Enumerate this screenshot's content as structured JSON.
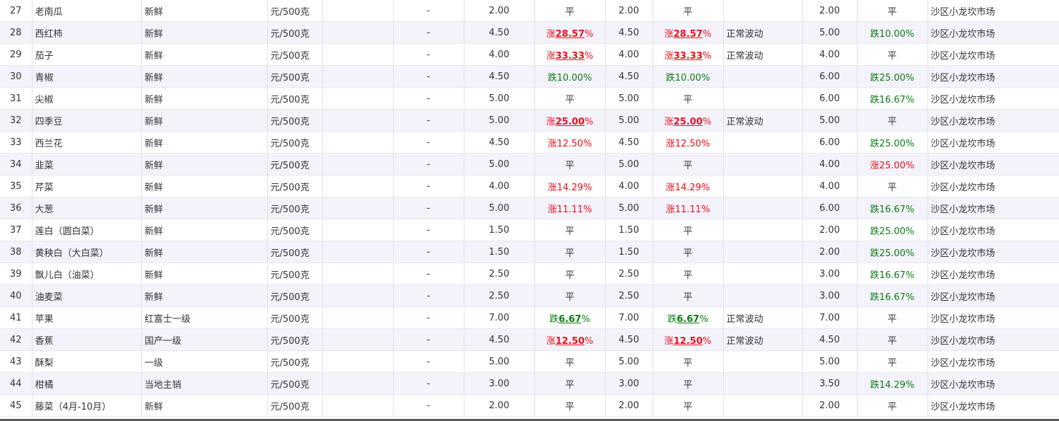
{
  "table": {
    "rows": [
      {
        "no": "27",
        "name": "老南瓜",
        "grade": "新鲜",
        "unit": "元/500克",
        "extra": "",
        "dash": "-",
        "price1": "2.00",
        "chg1": {
          "prefix": "平",
          "pct": "",
          "dir": "flat",
          "bold": false
        },
        "price2": "2.00",
        "chg2": {
          "prefix": "平",
          "pct": "",
          "dir": "flat",
          "bold": false
        },
        "note": "",
        "price3": "2.00",
        "chg3": {
          "prefix": "平",
          "pct": "",
          "dir": "flat",
          "bold": false
        },
        "market": "沙区小龙坎市场"
      },
      {
        "no": "28",
        "name": "西红柿",
        "grade": "新鲜",
        "unit": "元/500克",
        "extra": "",
        "dash": "-",
        "price1": "4.50",
        "chg1": {
          "prefix": "涨",
          "pct": "28.57",
          "dir": "up",
          "bold": true
        },
        "price2": "4.50",
        "chg2": {
          "prefix": "涨",
          "pct": "28.57",
          "dir": "up",
          "bold": true
        },
        "note": "正常波动",
        "price3": "5.00",
        "chg3": {
          "prefix": "跌",
          "pct": "10.00",
          "dir": "down",
          "bold": false
        },
        "market": "沙区小龙坎市场"
      },
      {
        "no": "29",
        "name": "茄子",
        "grade": "新鲜",
        "unit": "元/500克",
        "extra": "",
        "dash": "-",
        "price1": "4.00",
        "chg1": {
          "prefix": "涨",
          "pct": "33.33",
          "dir": "up",
          "bold": true
        },
        "price2": "4.00",
        "chg2": {
          "prefix": "涨",
          "pct": "33.33",
          "dir": "up",
          "bold": true
        },
        "note": "正常波动",
        "price3": "4.00",
        "chg3": {
          "prefix": "平",
          "pct": "",
          "dir": "flat",
          "bold": false
        },
        "market": "沙区小龙坎市场"
      },
      {
        "no": "30",
        "name": "青椒",
        "grade": "新鲜",
        "unit": "元/500克",
        "extra": "",
        "dash": "-",
        "price1": "4.50",
        "chg1": {
          "prefix": "跌",
          "pct": "10.00",
          "dir": "down",
          "bold": false
        },
        "price2": "4.50",
        "chg2": {
          "prefix": "跌",
          "pct": "10.00",
          "dir": "down",
          "bold": false
        },
        "note": "",
        "price3": "6.00",
        "chg3": {
          "prefix": "跌",
          "pct": "25.00",
          "dir": "down",
          "bold": false
        },
        "market": "沙区小龙坎市场"
      },
      {
        "no": "31",
        "name": "尖椒",
        "grade": "新鲜",
        "unit": "元/500克",
        "extra": "",
        "dash": "-",
        "price1": "5.00",
        "chg1": {
          "prefix": "平",
          "pct": "",
          "dir": "flat",
          "bold": false
        },
        "price2": "5.00",
        "chg2": {
          "prefix": "平",
          "pct": "",
          "dir": "flat",
          "bold": false
        },
        "note": "",
        "price3": "6.00",
        "chg3": {
          "prefix": "跌",
          "pct": "16.67",
          "dir": "down",
          "bold": false
        },
        "market": "沙区小龙坎市场"
      },
      {
        "no": "32",
        "name": "四季豆",
        "grade": "新鲜",
        "unit": "元/500克",
        "extra": "",
        "dash": "-",
        "price1": "5.00",
        "chg1": {
          "prefix": "涨",
          "pct": "25.00",
          "dir": "up",
          "bold": true
        },
        "price2": "5.00",
        "chg2": {
          "prefix": "涨",
          "pct": "25.00",
          "dir": "up",
          "bold": true
        },
        "note": "正常波动",
        "price3": "5.00",
        "chg3": {
          "prefix": "平",
          "pct": "",
          "dir": "flat",
          "bold": false
        },
        "market": "沙区小龙坎市场"
      },
      {
        "no": "33",
        "name": "西兰花",
        "grade": "新鲜",
        "unit": "元/500克",
        "extra": "",
        "dash": "-",
        "price1": "4.50",
        "chg1": {
          "prefix": "涨",
          "pct": "12.50",
          "dir": "up",
          "bold": false
        },
        "price2": "4.50",
        "chg2": {
          "prefix": "涨",
          "pct": "12.50",
          "dir": "up",
          "bold": false
        },
        "note": "",
        "price3": "6.00",
        "chg3": {
          "prefix": "跌",
          "pct": "25.00",
          "dir": "down",
          "bold": false
        },
        "market": "沙区小龙坎市场"
      },
      {
        "no": "34",
        "name": "韭菜",
        "grade": "新鲜",
        "unit": "元/500克",
        "extra": "",
        "dash": "-",
        "price1": "5.00",
        "chg1": {
          "prefix": "平",
          "pct": "",
          "dir": "flat",
          "bold": false
        },
        "price2": "5.00",
        "chg2": {
          "prefix": "平",
          "pct": "",
          "dir": "flat",
          "bold": false
        },
        "note": "",
        "price3": "4.00",
        "chg3": {
          "prefix": "涨",
          "pct": "25.00",
          "dir": "up",
          "bold": false
        },
        "market": "沙区小龙坎市场"
      },
      {
        "no": "35",
        "name": "芹菜",
        "grade": "新鲜",
        "unit": "元/500克",
        "extra": "",
        "dash": "-",
        "price1": "4.00",
        "chg1": {
          "prefix": "涨",
          "pct": "14.29",
          "dir": "up",
          "bold": false
        },
        "price2": "4.00",
        "chg2": {
          "prefix": "涨",
          "pct": "14.29",
          "dir": "up",
          "bold": false
        },
        "note": "",
        "price3": "4.00",
        "chg3": {
          "prefix": "平",
          "pct": "",
          "dir": "flat",
          "bold": false
        },
        "market": "沙区小龙坎市场"
      },
      {
        "no": "36",
        "name": "大葱",
        "grade": "新鲜",
        "unit": "元/500克",
        "extra": "",
        "dash": "-",
        "price1": "5.00",
        "chg1": {
          "prefix": "涨",
          "pct": "11.11",
          "dir": "up",
          "bold": false
        },
        "price2": "5.00",
        "chg2": {
          "prefix": "涨",
          "pct": "11.11",
          "dir": "up",
          "bold": false
        },
        "note": "",
        "price3": "6.00",
        "chg3": {
          "prefix": "跌",
          "pct": "16.67",
          "dir": "down",
          "bold": false
        },
        "market": "沙区小龙坎市场"
      },
      {
        "no": "37",
        "name": "莲白（圆白菜）",
        "grade": "新鲜",
        "unit": "元/500克",
        "extra": "",
        "dash": "-",
        "price1": "1.50",
        "chg1": {
          "prefix": "平",
          "pct": "",
          "dir": "flat",
          "bold": false
        },
        "price2": "1.50",
        "chg2": {
          "prefix": "平",
          "pct": "",
          "dir": "flat",
          "bold": false
        },
        "note": "",
        "price3": "2.00",
        "chg3": {
          "prefix": "跌",
          "pct": "25.00",
          "dir": "down",
          "bold": false
        },
        "market": "沙区小龙坎市场"
      },
      {
        "no": "38",
        "name": "黄秧白（大白菜）",
        "grade": "新鲜",
        "unit": "元/500克",
        "extra": "",
        "dash": "-",
        "price1": "1.50",
        "chg1": {
          "prefix": "平",
          "pct": "",
          "dir": "flat",
          "bold": false
        },
        "price2": "1.50",
        "chg2": {
          "prefix": "平",
          "pct": "",
          "dir": "flat",
          "bold": false
        },
        "note": "",
        "price3": "2.00",
        "chg3": {
          "prefix": "跌",
          "pct": "25.00",
          "dir": "down",
          "bold": false
        },
        "market": "沙区小龙坎市场"
      },
      {
        "no": "39",
        "name": "飘儿白（油菜）",
        "grade": "新鲜",
        "unit": "元/500克",
        "extra": "",
        "dash": "-",
        "price1": "2.50",
        "chg1": {
          "prefix": "平",
          "pct": "",
          "dir": "flat",
          "bold": false
        },
        "price2": "2.50",
        "chg2": {
          "prefix": "平",
          "pct": "",
          "dir": "flat",
          "bold": false
        },
        "note": "",
        "price3": "3.00",
        "chg3": {
          "prefix": "跌",
          "pct": "16.67",
          "dir": "down",
          "bold": false
        },
        "market": "沙区小龙坎市场"
      },
      {
        "no": "40",
        "name": "油麦菜",
        "grade": "新鲜",
        "unit": "元/500克",
        "extra": "",
        "dash": "-",
        "price1": "2.50",
        "chg1": {
          "prefix": "平",
          "pct": "",
          "dir": "flat",
          "bold": false
        },
        "price2": "2.50",
        "chg2": {
          "prefix": "平",
          "pct": "",
          "dir": "flat",
          "bold": false
        },
        "note": "",
        "price3": "3.00",
        "chg3": {
          "prefix": "跌",
          "pct": "16.67",
          "dir": "down",
          "bold": false
        },
        "market": "沙区小龙坎市场"
      },
      {
        "no": "41",
        "name": "苹果",
        "grade": "红富士一级",
        "unit": "元/500克",
        "extra": "",
        "dash": "-",
        "price1": "7.00",
        "chg1": {
          "prefix": "跌",
          "pct": "6.67",
          "dir": "down",
          "bold": true
        },
        "price2": "7.00",
        "chg2": {
          "prefix": "跌",
          "pct": "6.67",
          "dir": "down",
          "bold": true
        },
        "note": "正常波动",
        "price3": "7.00",
        "chg3": {
          "prefix": "平",
          "pct": "",
          "dir": "flat",
          "bold": false
        },
        "market": "沙区小龙坎市场"
      },
      {
        "no": "42",
        "name": "香蕉",
        "grade": "国产一级",
        "unit": "元/500克",
        "extra": "",
        "dash": "-",
        "price1": "4.50",
        "chg1": {
          "prefix": "涨",
          "pct": "12.50",
          "dir": "up",
          "bold": true
        },
        "price2": "4.50",
        "chg2": {
          "prefix": "涨",
          "pct": "12.50",
          "dir": "up",
          "bold": true
        },
        "note": "正常波动",
        "price3": "4.50",
        "chg3": {
          "prefix": "平",
          "pct": "",
          "dir": "flat",
          "bold": false
        },
        "market": "沙区小龙坎市场"
      },
      {
        "no": "43",
        "name": "酥梨",
        "grade": "一级",
        "unit": "元/500克",
        "extra": "",
        "dash": "-",
        "price1": "5.00",
        "chg1": {
          "prefix": "平",
          "pct": "",
          "dir": "flat",
          "bold": false
        },
        "price2": "5.00",
        "chg2": {
          "prefix": "平",
          "pct": "",
          "dir": "flat",
          "bold": false
        },
        "note": "",
        "price3": "5.00",
        "chg3": {
          "prefix": "平",
          "pct": "",
          "dir": "flat",
          "bold": false
        },
        "market": "沙区小龙坎市场"
      },
      {
        "no": "44",
        "name": "柑橘",
        "grade": "当地主销",
        "unit": "元/500克",
        "extra": "",
        "dash": "-",
        "price1": "3.00",
        "chg1": {
          "prefix": "平",
          "pct": "",
          "dir": "flat",
          "bold": false
        },
        "price2": "3.00",
        "chg2": {
          "prefix": "平",
          "pct": "",
          "dir": "flat",
          "bold": false
        },
        "note": "",
        "price3": "3.50",
        "chg3": {
          "prefix": "跌",
          "pct": "14.29",
          "dir": "down",
          "bold": false
        },
        "market": "沙区小龙坎市场"
      },
      {
        "no": "45",
        "name": "藤菜（4月-10月）",
        "grade": "新鲜",
        "unit": "元/500克",
        "extra": "",
        "dash": "-",
        "price1": "2.00",
        "chg1": {
          "prefix": "平",
          "pct": "",
          "dir": "flat",
          "bold": false
        },
        "price2": "2.00",
        "chg2": {
          "prefix": "平",
          "pct": "",
          "dir": "flat",
          "bold": false
        },
        "note": "",
        "price3": "2.00",
        "chg3": {
          "prefix": "平",
          "pct": "",
          "dir": "flat",
          "bold": false
        },
        "market": "沙区小龙坎市场"
      }
    ]
  }
}
